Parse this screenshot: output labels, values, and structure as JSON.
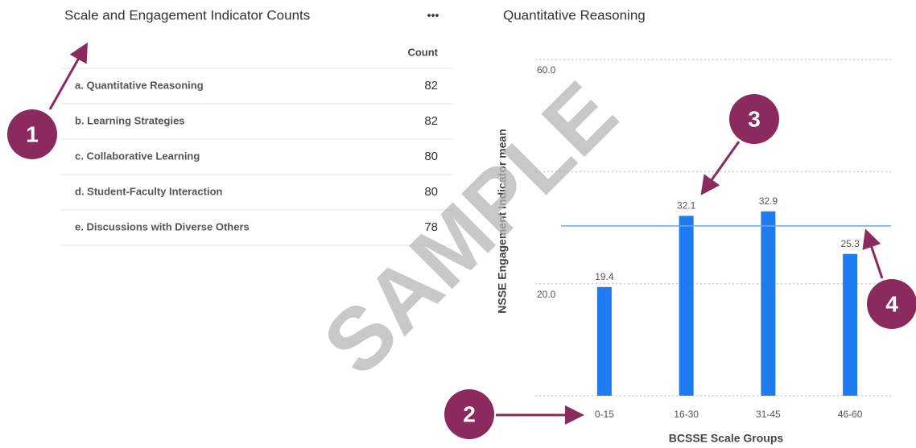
{
  "table": {
    "title": "Scale and Engagement Indicator Counts",
    "menu": "•••",
    "header": "Count",
    "rows": [
      [
        "a. Quantitative Reasoning",
        "82"
      ],
      [
        "b. Learning Strategies",
        "82"
      ],
      [
        "c. Collaborative Learning",
        "80"
      ],
      [
        "d. Student-Faculty Interaction",
        "80"
      ],
      [
        "e. Discussions with Diverse Others",
        "78"
      ]
    ]
  },
  "chart_data": {
    "type": "bar",
    "title": "Quantitative Reasoning",
    "x_label": "BCSSE Scale Groups",
    "y_label": "NSSE Engagement Indicator mean",
    "categories": [
      "0-15",
      "16-30",
      "31-45",
      "46-60"
    ],
    "values": [
      19.4,
      32.1,
      32.9,
      25.3
    ],
    "color": "#1e7bf0",
    "ylim": [
      0,
      60
    ],
    "yticks": [
      {
        "value": 0,
        "label": null
      },
      {
        "value": 20,
        "label": "20.0"
      },
      {
        "value": 40,
        "label": null
      },
      {
        "value": 60,
        "label": "60.0"
      }
    ],
    "grid": true,
    "reference_line": 30.3,
    "reference_color": "#6aa8f5"
  },
  "watermark": "SAMPLE",
  "annotations": [
    "1",
    "2",
    "3",
    "4"
  ]
}
